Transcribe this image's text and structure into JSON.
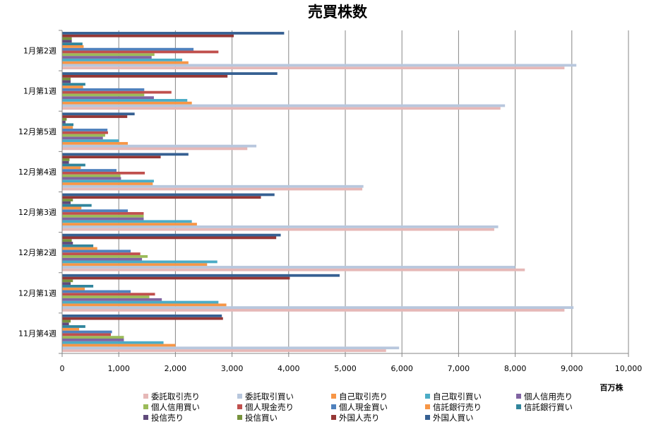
{
  "chart_data": {
    "type": "bar",
    "orientation": "horizontal",
    "title": "売買株数",
    "unit_label": "百万株",
    "xlim": [
      0,
      10000
    ],
    "xticks": [
      0,
      1000,
      2000,
      3000,
      4000,
      5000,
      6000,
      7000,
      8000,
      9000,
      10000
    ],
    "xtick_labels": [
      "0",
      "1,000",
      "2,000",
      "3,000",
      "4,000",
      "5,000",
      "6,000",
      "7,000",
      "8,000",
      "9,000",
      "10,000"
    ],
    "grid": "vertical",
    "legend_position": "bottom",
    "categories": [
      "11月第4週",
      "12月第1週",
      "12月第2週",
      "12月第3週",
      "12月第4週",
      "12月第5週",
      "1月第1週",
      "1月第2週"
    ],
    "series": [
      {
        "name": "委託取引売り",
        "color": "#e6b8b7",
        "values": [
          5720,
          8870,
          8170,
          7630,
          5300,
          3270,
          7740,
          8870
        ]
      },
      {
        "name": "委託取引買い",
        "color": "#b8c7dd",
        "values": [
          5950,
          9030,
          8000,
          7700,
          5320,
          3430,
          7820,
          9080
        ]
      },
      {
        "name": "自己取引売り",
        "color": "#f79646",
        "values": [
          2000,
          2900,
          2560,
          2380,
          1600,
          1160,
          2290,
          2230
        ]
      },
      {
        "name": "自己取引買い",
        "color": "#4bacc6",
        "values": [
          1790,
          2760,
          2740,
          2290,
          1620,
          1000,
          2210,
          2120
        ]
      },
      {
        "name": "個人信用売り",
        "color": "#8064a2",
        "values": [
          1090,
          1760,
          1410,
          1440,
          1040,
          720,
          1620,
          1580
        ]
      },
      {
        "name": "個人信用買い",
        "color": "#9bbb59",
        "values": [
          1090,
          1540,
          1510,
          1440,
          1030,
          760,
          1450,
          1630
        ]
      },
      {
        "name": "個人現金売り",
        "color": "#c0504d",
        "values": [
          860,
          1640,
          1380,
          1440,
          1460,
          810,
          1930,
          2760
        ]
      },
      {
        "name": "個人現金買い",
        "color": "#4f81bd",
        "values": [
          880,
          1210,
          1210,
          1160,
          960,
          800,
          1450,
          2320
        ]
      },
      {
        "name": "信託銀行売り",
        "color": "#f79646",
        "values": [
          300,
          400,
          620,
          340,
          330,
          190,
          370,
          380
        ]
      },
      {
        "name": "信託銀行買い",
        "color": "#31859c",
        "values": [
          410,
          550,
          550,
          520,
          410,
          200,
          410,
          360
        ]
      },
      {
        "name": "投信売り",
        "color": "#604a7b",
        "values": [
          120,
          150,
          190,
          150,
          120,
          60,
          150,
          170
        ]
      },
      {
        "name": "投信買い",
        "color": "#77933c",
        "values": [
          150,
          190,
          170,
          190,
          130,
          80,
          150,
          170
        ]
      },
      {
        "name": "外国人売り",
        "color": "#953735",
        "values": [
          2840,
          4020,
          3780,
          3510,
          1740,
          1150,
          2920,
          3030
        ]
      },
      {
        "name": "外国人買い",
        "color": "#366092",
        "values": [
          2820,
          4900,
          3860,
          3750,
          2230,
          1280,
          3800,
          3920
        ]
      }
    ]
  }
}
